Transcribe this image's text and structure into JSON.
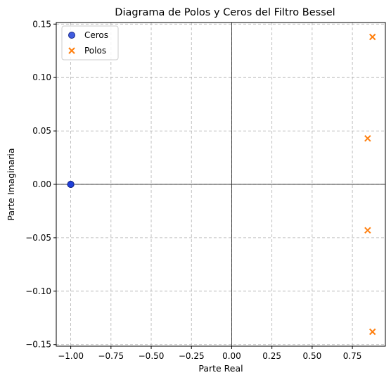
{
  "chart_data": {
    "type": "scatter",
    "title": "Diagrama de Polos y Ceros del Filtro Bessel",
    "xlabel": "Parte Real",
    "ylabel": "Parte Imaginaria",
    "xlim": [
      -1.09,
      0.955
    ],
    "ylim": [
      -0.1515,
      0.1515
    ],
    "xticks": [
      -1.0,
      -0.75,
      -0.5,
      -0.25,
      0.0,
      0.25,
      0.5,
      0.75
    ],
    "xtick_labels": [
      "−1.00",
      "−0.75",
      "−0.50",
      "−0.25",
      "0.00",
      "0.25",
      "0.50",
      "0.75"
    ],
    "yticks": [
      -0.15,
      -0.1,
      -0.05,
      0.0,
      0.05,
      0.1,
      0.15
    ],
    "ytick_labels": [
      "−0.15",
      "−0.10",
      "−0.05",
      "0.00",
      "0.05",
      "0.10",
      "0.15"
    ],
    "grid": true,
    "grid_style": "dashed",
    "reference_lines": {
      "x": 0,
      "y": 0
    },
    "legend_position": "top-left",
    "series": [
      {
        "name": "Ceros",
        "marker": "circle",
        "color": "#1f3fd9",
        "points": [
          {
            "x": -1.0,
            "y": 0.0
          },
          {
            "x": -1.0,
            "y": 0.0
          },
          {
            "x": -1.0,
            "y": 0.0
          },
          {
            "x": -1.0,
            "y": 0.0
          }
        ]
      },
      {
        "name": "Polos",
        "marker": "x",
        "color": "#ff7f0e",
        "points": [
          {
            "x": 0.875,
            "y": 0.138
          },
          {
            "x": 0.845,
            "y": 0.043
          },
          {
            "x": 0.845,
            "y": -0.043
          },
          {
            "x": 0.875,
            "y": -0.138
          }
        ]
      }
    ]
  }
}
